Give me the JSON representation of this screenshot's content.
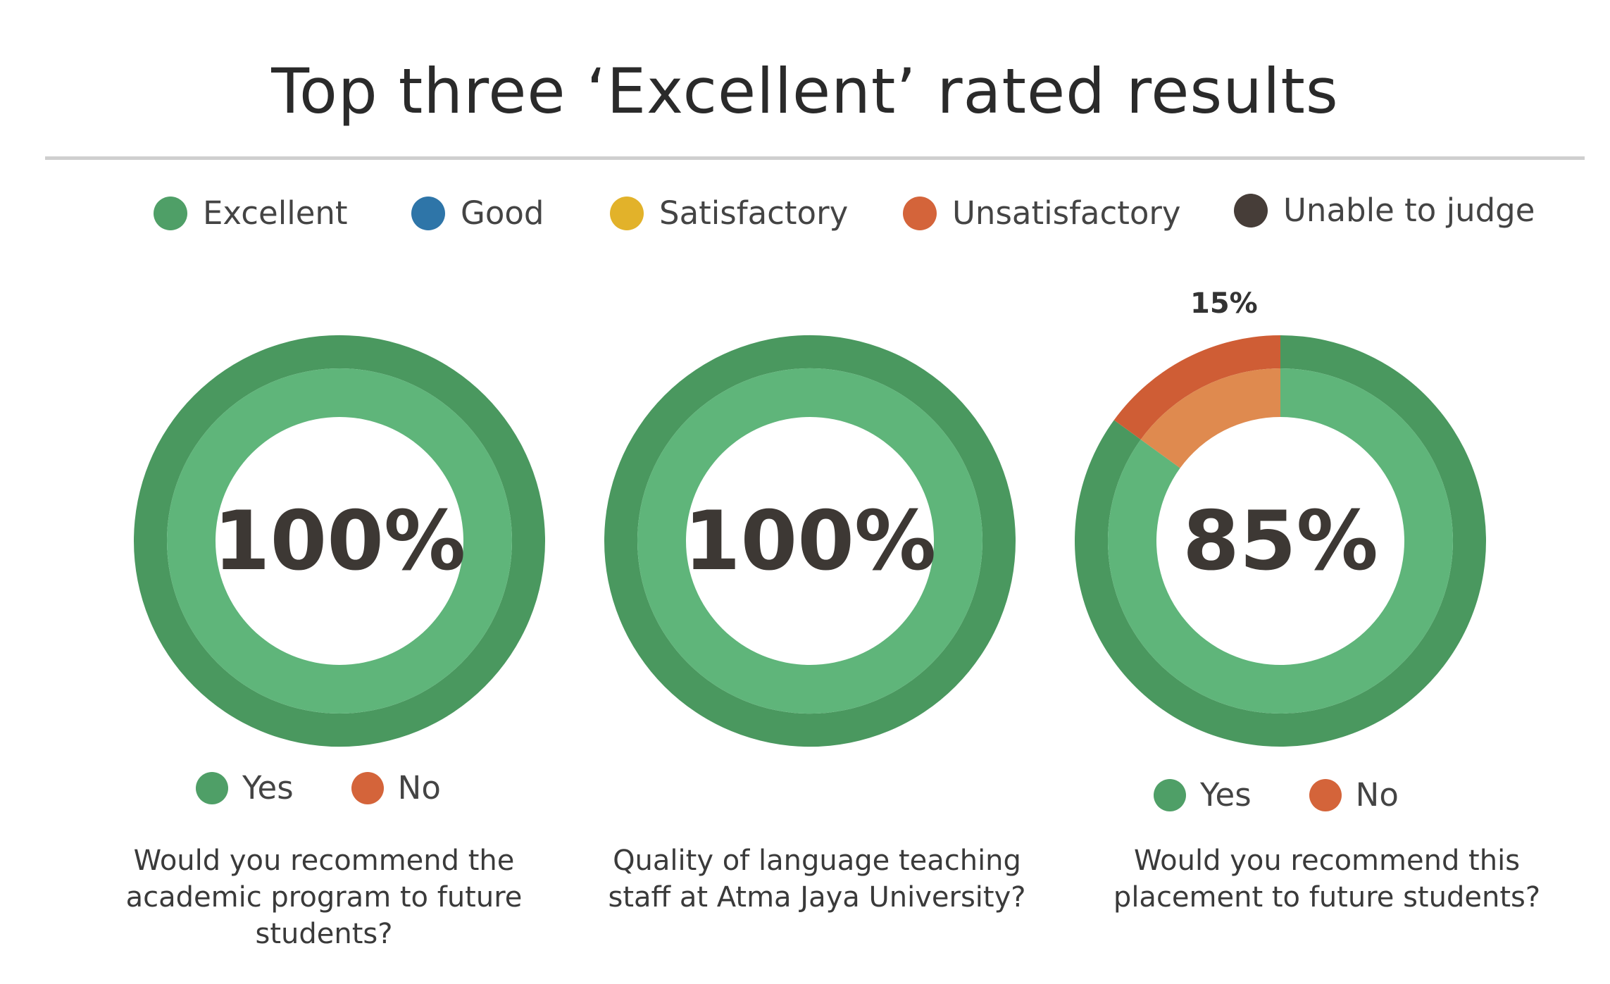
{
  "chart_data": {
    "type": "pie",
    "title": "Top three ‘Excellent’ rated results",
    "legend": [
      {
        "label": "Excellent",
        "color": "#4f9f67"
      },
      {
        "label": "Good",
        "color": "#2e75a8"
      },
      {
        "label": "Satisfactory",
        "color": "#e2b22a"
      },
      {
        "label": "Unsatisfactory",
        "color": "#d4643a"
      },
      {
        "label": "Unable to judge",
        "color": "#463d38"
      }
    ],
    "charts": [
      {
        "question": "Would you recommend the academic program to future students?",
        "center_label": "100%",
        "slices": [
          {
            "label": "Yes",
            "value": 100,
            "outer": "#4a985f",
            "inner": "#5fb57a"
          }
        ],
        "sub_legend": [
          {
            "label": "Yes",
            "color": "#4f9f67"
          },
          {
            "label": "No",
            "color": "#d4643a"
          }
        ]
      },
      {
        "question": "Quality of language teaching staff at Atma Jaya University?",
        "center_label": "100%",
        "slices": [
          {
            "label": "Excellent",
            "value": 100,
            "outer": "#4a985f",
            "inner": "#5fb57a"
          }
        ],
        "sub_legend": []
      },
      {
        "question": "Would you recommend this placement to future students?",
        "center_label": "85%",
        "slice_label": "15%",
        "slices": [
          {
            "label": "Yes",
            "value": 85,
            "outer": "#4a985f",
            "inner": "#5fb57a"
          },
          {
            "label": "No",
            "value": 15,
            "outer": "#cf5d35",
            "inner": "#df8a4f"
          }
        ],
        "sub_legend": [
          {
            "label": "Yes",
            "color": "#4f9f67"
          },
          {
            "label": "No",
            "color": "#d4643a"
          }
        ]
      }
    ]
  }
}
